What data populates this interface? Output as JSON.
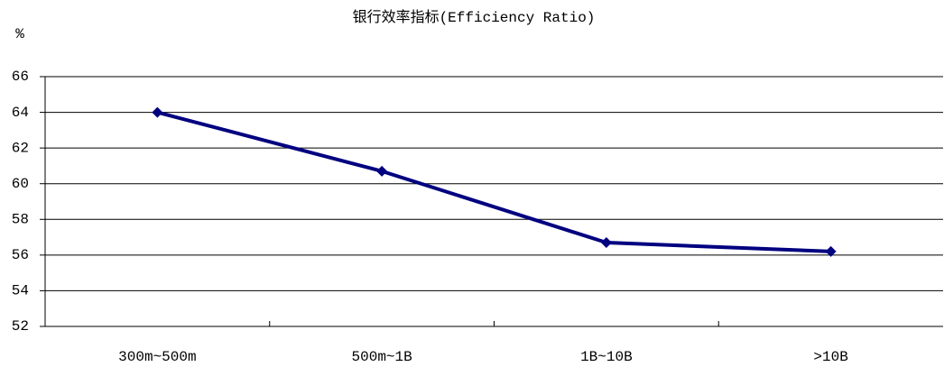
{
  "chart_data": {
    "type": "line",
    "title": "银行效率指标(Efficiency Ratio)",
    "y_label": "%",
    "categories": [
      "300m~500m",
      "500m~1B",
      "1B~10B",
      ">10B"
    ],
    "series": [
      {
        "name": "Efficiency Ratio",
        "color": "#000080",
        "values": [
          64,
          60.7,
          56.7,
          56.2
        ]
      }
    ],
    "ylim": [
      52,
      66
    ],
    "yticks": [
      52,
      54,
      56,
      58,
      60,
      62,
      64,
      66
    ],
    "grid": true
  }
}
